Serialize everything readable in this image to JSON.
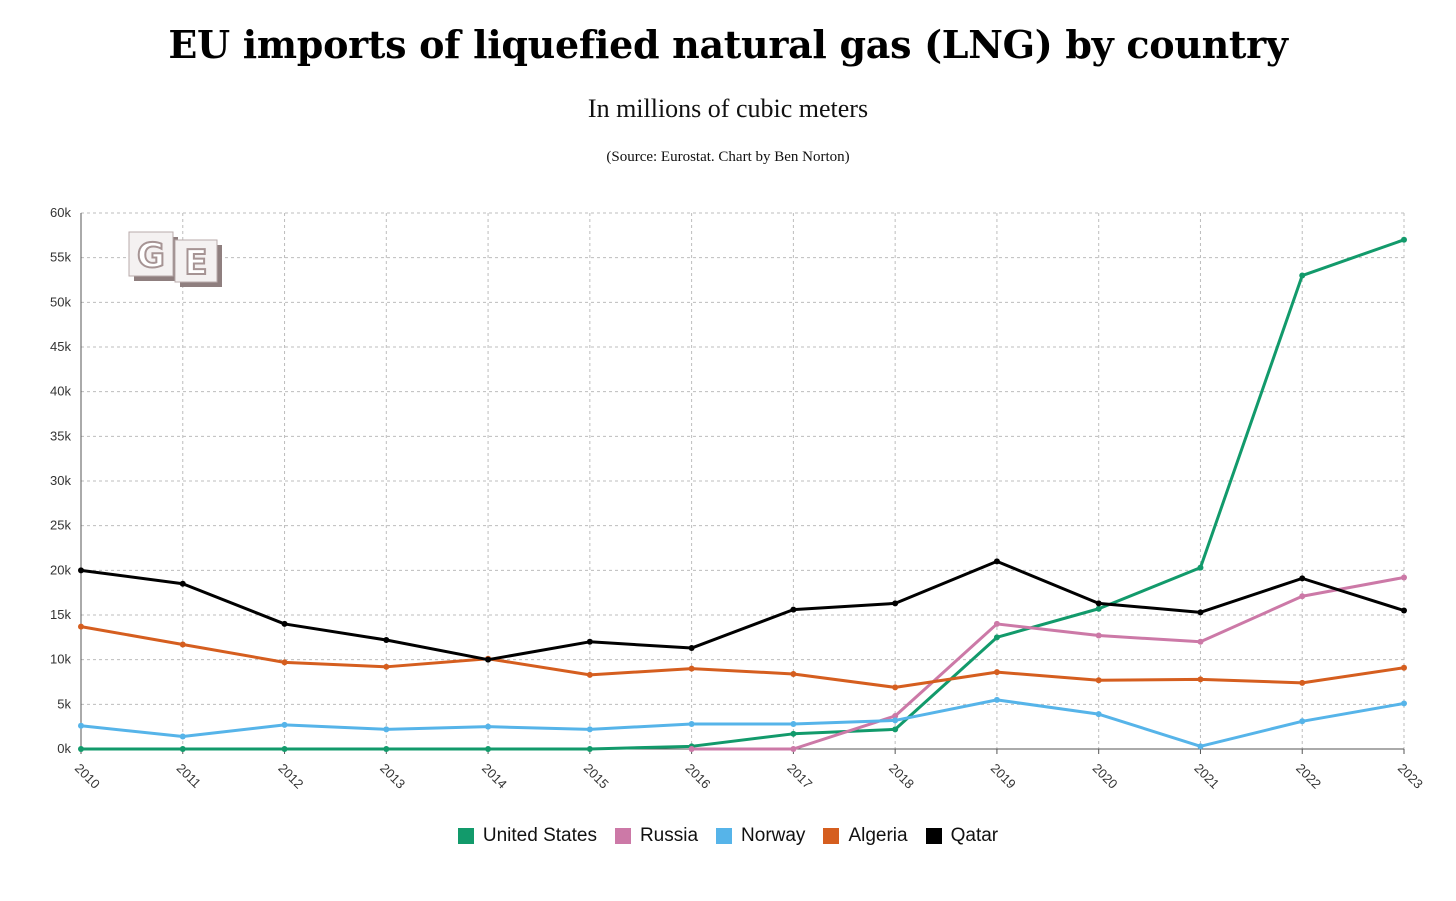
{
  "header": {
    "title": "EU imports of liquefied natural gas (LNG) by country",
    "subtitle": "In millions of cubic meters",
    "source": "(Source: Eurostat. Chart by Ben Norton)"
  },
  "logo": {
    "letters": [
      "G",
      "E"
    ]
  },
  "chart_data": {
    "type": "line",
    "title": "EU imports of liquefied natural gas (LNG) by country",
    "subtitle": "In millions of cubic meters",
    "xlabel": "",
    "ylabel": "",
    "x": [
      "2010",
      "2011",
      "2012",
      "2013",
      "2014",
      "2015",
      "2016",
      "2017",
      "2018",
      "2019",
      "2020",
      "2021",
      "2022",
      "2023"
    ],
    "ylim": [
      0,
      60000
    ],
    "yticks": [
      0,
      5000,
      10000,
      15000,
      20000,
      25000,
      30000,
      35000,
      40000,
      45000,
      50000,
      55000,
      60000
    ],
    "ytick_labels": [
      "0k",
      "5k",
      "10k",
      "15k",
      "20k",
      "25k",
      "30k",
      "35k",
      "40k",
      "45k",
      "50k",
      "55k",
      "60k"
    ],
    "grid": true,
    "legend_position": "bottom-center",
    "series": [
      {
        "name": "United States",
        "color": "#129a6b",
        "values": [
          0,
          0,
          0,
          0,
          0,
          0,
          300,
          1700,
          2200,
          12500,
          15700,
          20300,
          53000,
          57000
        ]
      },
      {
        "name": "Russia",
        "color": "#cc79a7",
        "values": [
          null,
          null,
          null,
          null,
          null,
          null,
          0,
          0,
          3700,
          14000,
          12700,
          12000,
          17100,
          19200
        ]
      },
      {
        "name": "Norway",
        "color": "#56b4e9",
        "values": [
          2600,
          1400,
          2700,
          2200,
          2500,
          2200,
          2800,
          2800,
          3200,
          5500,
          3900,
          300,
          3100,
          5100
        ]
      },
      {
        "name": "Algeria",
        "color": "#d55e1f",
        "values": [
          13700,
          11700,
          9700,
          9200,
          10100,
          8300,
          9000,
          8400,
          6900,
          8600,
          7700,
          7800,
          7400,
          9100
        ]
      },
      {
        "name": "Qatar",
        "color": "#000000",
        "values": [
          20000,
          18500,
          14000,
          12200,
          10000,
          12000,
          11300,
          15600,
          16300,
          21000,
          16300,
          15300,
          19100,
          15500
        ]
      }
    ]
  }
}
